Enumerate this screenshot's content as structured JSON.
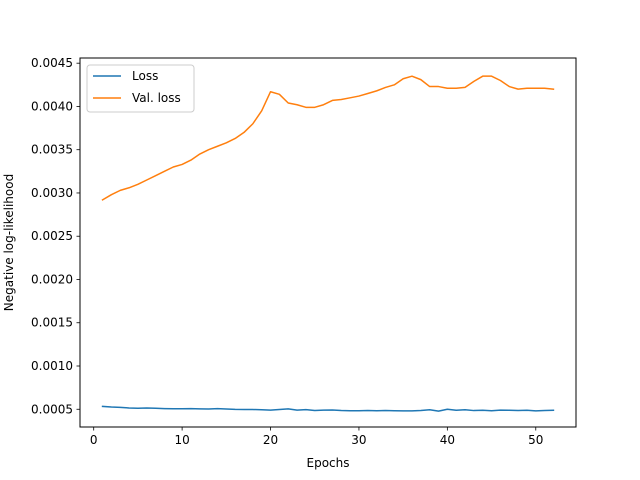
{
  "chart_data": {
    "type": "line",
    "title": "",
    "xlabel": "Epochs",
    "ylabel": "Negative log-likelihood",
    "xlim": [
      -1.55,
      54.55
    ],
    "ylim": [
      0.000295,
      0.00456
    ],
    "xticks": [
      0,
      10,
      20,
      30,
      40,
      50
    ],
    "xtick_labels": [
      "0",
      "10",
      "20",
      "30",
      "40",
      "50"
    ],
    "yticks": [
      0.0005,
      0.001,
      0.0015,
      0.002,
      0.0025,
      0.003,
      0.0035,
      0.004,
      0.0045
    ],
    "ytick_labels": [
      "0.0005",
      "0.0010",
      "0.0015",
      "0.0020",
      "0.0025",
      "0.0030",
      "0.0035",
      "0.0040",
      "0.0045"
    ],
    "grid": false,
    "legend_position": "top-left",
    "x": [
      1,
      2,
      3,
      4,
      5,
      6,
      7,
      8,
      9,
      10,
      11,
      12,
      13,
      14,
      15,
      16,
      17,
      18,
      19,
      20,
      21,
      22,
      23,
      24,
      25,
      26,
      27,
      28,
      29,
      30,
      31,
      32,
      33,
      34,
      35,
      36,
      37,
      38,
      39,
      40,
      41,
      42,
      43,
      44,
      45,
      46,
      47,
      48,
      49,
      50,
      51,
      52
    ],
    "series": [
      {
        "name": "Loss",
        "color": "#1f77b4",
        "values": [
          0.000533,
          0.000526,
          0.000522,
          0.000515,
          0.000512,
          0.000515,
          0.000512,
          0.000508,
          0.000506,
          0.000506,
          0.000508,
          0.000505,
          0.000503,
          0.000507,
          0.000503,
          0.000499,
          0.000498,
          0.000497,
          0.000494,
          0.00049,
          0.000497,
          0.000504,
          0.00049,
          0.000496,
          0.000486,
          0.00049,
          0.000491,
          0.000485,
          0.000483,
          0.000483,
          0.000486,
          0.000483,
          0.000485,
          0.000483,
          0.000482,
          0.000482,
          0.000486,
          0.000494,
          0.000478,
          0.0005,
          0.000488,
          0.000495,
          0.000485,
          0.000488,
          0.000483,
          0.00049,
          0.000489,
          0.000485,
          0.000488,
          0.000481,
          0.000485,
          0.000488
        ]
      },
      {
        "name": "Val. loss",
        "color": "#ff7f0e",
        "values": [
          0.00292,
          0.00298,
          0.00303,
          0.00306,
          0.0031,
          0.00315,
          0.0032,
          0.00325,
          0.0033,
          0.00333,
          0.00338,
          0.00345,
          0.0035,
          0.00354,
          0.00358,
          0.00363,
          0.0037,
          0.0038,
          0.00395,
          0.00417,
          0.00414,
          0.00404,
          0.00402,
          0.00399,
          0.00399,
          0.00402,
          0.00407,
          0.00408,
          0.0041,
          0.00412,
          0.00415,
          0.00418,
          0.00422,
          0.00425,
          0.00432,
          0.00435,
          0.00431,
          0.00423,
          0.00423,
          0.00421,
          0.00421,
          0.00422,
          0.00429,
          0.00435,
          0.00435,
          0.0043,
          0.00423,
          0.0042,
          0.00421,
          0.00421,
          0.00421,
          0.0042
        ]
      }
    ]
  }
}
